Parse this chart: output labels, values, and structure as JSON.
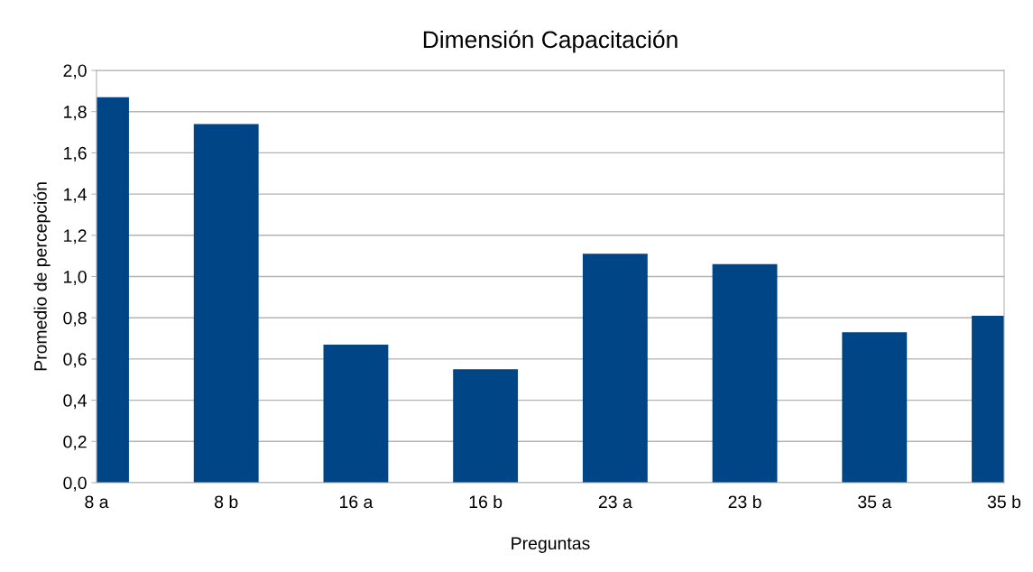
{
  "chart_data": {
    "type": "bar",
    "title": "Dimensión Capacitación",
    "xlabel": "Preguntas",
    "ylabel": "Promedio de percepción",
    "categories": [
      "8 a",
      "8 b",
      "16 a",
      "16 b",
      "23 a",
      "23 b",
      "35 a",
      "35 b"
    ],
    "values": [
      1.87,
      1.74,
      0.67,
      0.55,
      1.11,
      1.06,
      0.73,
      0.81
    ],
    "color": "#004586",
    "ylim": [
      0,
      2.0
    ],
    "yticks": [
      {
        "value": 0,
        "label": "0,0"
      },
      {
        "value": 0.2,
        "label": "0,2"
      },
      {
        "value": 0.4,
        "label": "0,4"
      },
      {
        "value": 0.6,
        "label": "0,6"
      },
      {
        "value": 0.8,
        "label": "0,8"
      },
      {
        "value": 1.0,
        "label": "1,0"
      },
      {
        "value": 1.2,
        "label": "1,2"
      },
      {
        "value": 1.4,
        "label": "1,4"
      },
      {
        "value": 1.6,
        "label": "1,6"
      },
      {
        "value": 1.8,
        "label": "1,8"
      },
      {
        "value": 2.0,
        "label": "2,0"
      }
    ],
    "grid": "y",
    "legend": false
  }
}
